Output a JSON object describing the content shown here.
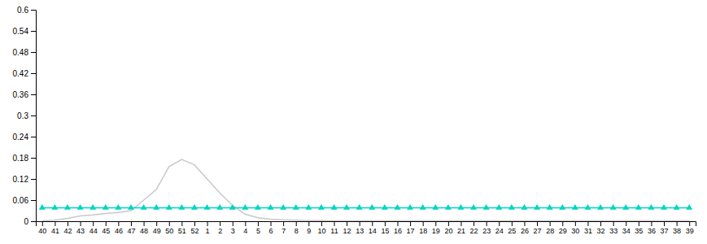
{
  "chart_data": {
    "type": "line",
    "categories": [
      "40",
      "41",
      "42",
      "43",
      "44",
      "45",
      "46",
      "47",
      "48",
      "49",
      "50",
      "51",
      "52",
      "1",
      "2",
      "3",
      "4",
      "5",
      "6",
      "7",
      "8",
      "9",
      "10",
      "11",
      "12",
      "13",
      "14",
      "15",
      "16",
      "17",
      "18",
      "19",
      "20",
      "21",
      "22",
      "23",
      "24",
      "25",
      "26",
      "27",
      "28",
      "29",
      "30",
      "31",
      "32",
      "33",
      "34",
      "35",
      "36",
      "37",
      "38",
      "39"
    ],
    "series": [
      {
        "color": "#c8c8c8",
        "values": [
          0.001,
          0.003,
          0.008,
          0.015,
          0.018,
          0.022,
          0.025,
          0.03,
          0.06,
          0.09,
          0.155,
          0.175,
          0.16,
          0.12,
          0.08,
          0.045,
          0.02,
          0.01,
          0.006,
          0.004,
          0.003,
          0.002,
          0.002,
          0.001,
          0.001,
          0.001,
          0.001,
          0.001,
          0.001,
          0.001,
          0.001,
          0.001,
          0.001,
          0.001,
          0.001,
          0.001,
          0.001,
          0.001,
          0.001,
          0.001,
          0.001,
          0.001,
          0.001,
          0.001,
          0.001,
          0.001,
          0.001,
          0.001,
          0.001,
          0.001,
          0.001,
          0.001
        ]
      },
      {
        "color": "#00d4c8",
        "marker": "triangle",
        "values": [
          0.038,
          0.038,
          0.038,
          0.038,
          0.038,
          0.038,
          0.038,
          0.038,
          0.038,
          0.038,
          0.038,
          0.038,
          0.038,
          0.038,
          0.038,
          0.038,
          0.038,
          0.038,
          0.038,
          0.038,
          0.038,
          0.038,
          0.038,
          0.038,
          0.038,
          0.038,
          0.038,
          0.038,
          0.038,
          0.038,
          0.038,
          0.038,
          0.038,
          0.038,
          0.038,
          0.038,
          0.038,
          0.038,
          0.038,
          0.038,
          0.038,
          0.038,
          0.038,
          0.038,
          0.038,
          0.038,
          0.038,
          0.038,
          0.038,
          0.038,
          0.038,
          0.038
        ]
      }
    ],
    "ylim": [
      0,
      0.6
    ],
    "yticks": [
      0,
      0.06,
      0.12,
      0.18,
      0.24,
      0.3,
      0.36,
      0.42,
      0.48,
      0.54,
      0.6
    ],
    "grid": false
  }
}
